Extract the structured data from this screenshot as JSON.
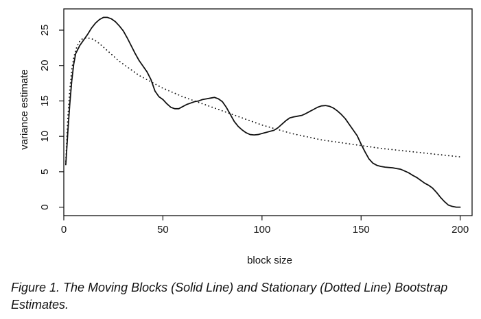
{
  "caption": "Figure 1.  The Moving Blocks (Solid Line) and Stationary (Dotted Line) Bootstrap Estimates.",
  "chart_data": {
    "type": "line",
    "title": "",
    "xlabel": "block size",
    "ylabel": "variance estimate",
    "xlim": [
      0,
      206
    ],
    "ylim": [
      -1.2,
      28
    ],
    "xticks": [
      0,
      50,
      100,
      150,
      200
    ],
    "yticks": [
      0,
      5,
      10,
      15,
      20,
      25
    ],
    "grid": false,
    "legend": "none",
    "series": [
      {
        "style": "solid",
        "color": "#111111",
        "x": [
          1,
          2,
          3,
          4,
          5,
          6,
          8,
          10,
          12,
          14,
          16,
          18,
          20,
          22,
          24,
          26,
          28,
          30,
          32,
          34,
          36,
          38,
          40,
          42,
          44,
          46,
          48,
          50,
          52,
          54,
          56,
          58,
          60,
          62,
          64,
          66,
          68,
          70,
          72,
          74,
          76,
          78,
          80,
          82,
          84,
          86,
          88,
          90,
          92,
          94,
          96,
          98,
          100,
          102,
          104,
          106,
          108,
          110,
          112,
          114,
          116,
          118,
          120,
          122,
          124,
          126,
          128,
          130,
          132,
          134,
          136,
          138,
          140,
          142,
          144,
          146,
          148,
          150,
          152,
          154,
          156,
          158,
          160,
          162,
          164,
          166,
          168,
          170,
          172,
          174,
          176,
          178,
          180,
          182,
          184,
          186,
          188,
          190,
          192,
          194,
          196,
          198,
          200
        ],
        "y": [
          6.0,
          10.5,
          14.5,
          17.8,
          20.2,
          21.7,
          22.8,
          23.6,
          24.4,
          25.3,
          26.0,
          26.5,
          26.8,
          26.8,
          26.6,
          26.2,
          25.6,
          24.9,
          23.9,
          22.8,
          21.7,
          20.7,
          19.9,
          19.1,
          18.0,
          16.4,
          15.6,
          15.2,
          14.6,
          14.1,
          13.9,
          13.9,
          14.2,
          14.5,
          14.7,
          14.9,
          15.0,
          15.2,
          15.3,
          15.4,
          15.5,
          15.3,
          14.9,
          14.1,
          13.1,
          12.1,
          11.4,
          10.9,
          10.5,
          10.25,
          10.2,
          10.25,
          10.4,
          10.55,
          10.7,
          10.85,
          11.2,
          11.7,
          12.2,
          12.6,
          12.75,
          12.85,
          12.95,
          13.2,
          13.5,
          13.8,
          14.1,
          14.3,
          14.35,
          14.25,
          14.0,
          13.6,
          13.1,
          12.5,
          11.7,
          10.9,
          10.1,
          8.9,
          7.8,
          6.8,
          6.2,
          5.9,
          5.75,
          5.65,
          5.6,
          5.55,
          5.45,
          5.35,
          5.1,
          4.85,
          4.5,
          4.2,
          3.8,
          3.4,
          3.1,
          2.7,
          2.1,
          1.4,
          0.8,
          0.3,
          0.1,
          0.0,
          0.0
        ]
      },
      {
        "style": "dotted",
        "color": "#111111",
        "x": [
          1,
          2,
          3,
          4,
          5,
          6,
          7,
          8,
          9,
          10,
          12,
          14,
          16,
          18,
          20,
          22,
          24,
          26,
          28,
          30,
          32,
          34,
          36,
          38,
          40,
          42,
          44,
          46,
          48,
          50,
          55,
          60,
          65,
          70,
          75,
          80,
          85,
          90,
          95,
          100,
          105,
          110,
          115,
          120,
          125,
          130,
          135,
          140,
          145,
          150,
          155,
          160,
          165,
          170,
          175,
          180,
          185,
          190,
          195,
          200
        ],
        "y": [
          6.5,
          12.5,
          16.5,
          19.4,
          21.1,
          22.2,
          22.9,
          23.4,
          23.7,
          23.85,
          23.9,
          23.8,
          23.5,
          23.1,
          22.6,
          22.1,
          21.6,
          21.1,
          20.6,
          20.2,
          19.8,
          19.4,
          19.0,
          18.6,
          18.3,
          18.0,
          17.7,
          17.4,
          17.1,
          16.8,
          16.2,
          15.6,
          15.1,
          14.6,
          14.1,
          13.6,
          13.1,
          12.6,
          12.1,
          11.6,
          11.2,
          10.8,
          10.4,
          10.1,
          9.8,
          9.5,
          9.3,
          9.1,
          8.9,
          8.7,
          8.5,
          8.3,
          8.15,
          8.0,
          7.85,
          7.7,
          7.55,
          7.4,
          7.25,
          7.1
        ]
      }
    ]
  }
}
